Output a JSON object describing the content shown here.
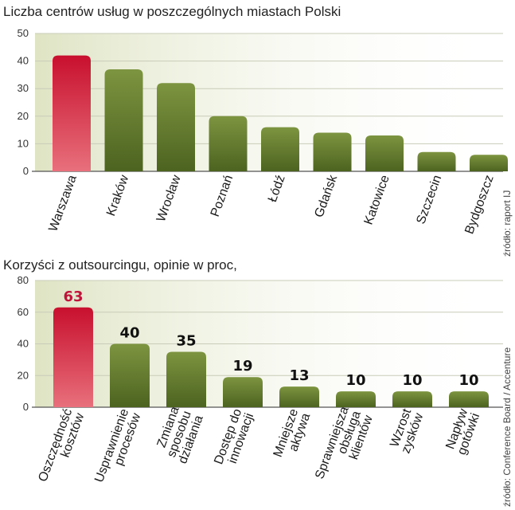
{
  "colors": {
    "highlight": "#d21c3c",
    "bar": "#5f7a2a",
    "band": "#e9ecd6",
    "highlight_label": "#c0143a"
  },
  "chart_data": [
    {
      "type": "bar",
      "title": "Liczba centrów usług w poszczególnych miastach Polski",
      "source": "źródło: raport IJ",
      "categories": [
        "Warszawa",
        "Kraków",
        "Wrocław",
        "Poznań",
        "Łódź",
        "Gdańsk",
        "Katowice",
        "Szczecin",
        "Bydgoszcz"
      ],
      "values": [
        42,
        37,
        32,
        20,
        16,
        14,
        13,
        7,
        6
      ],
      "highlight_index": 0,
      "ylim": [
        0,
        50
      ],
      "yticks": [
        0,
        10,
        20,
        30,
        40,
        50
      ],
      "show_value_labels": false
    },
    {
      "type": "bar",
      "title": "Korzyści z outsourcingu, opinie w proc,",
      "source": "źródło: Conference Board / Accenture",
      "categories": [
        [
          "Oszczędność",
          "kosztów"
        ],
        [
          "Usprawnienie",
          "procesów"
        ],
        [
          "Zmiana",
          "sposobu",
          "działania"
        ],
        [
          "Dostęp do",
          "innowacji"
        ],
        [
          "Mniejsze",
          "aktywa"
        ],
        [
          "Sprawniejsza",
          "obsługa",
          "klientów"
        ],
        [
          "Wzrost",
          "zysków"
        ],
        [
          "Napływ",
          "gotówki"
        ]
      ],
      "values": [
        63,
        40,
        35,
        19,
        13,
        10,
        10,
        10
      ],
      "value_labels": [
        "63",
        "40",
        "35",
        "19",
        "13",
        "10",
        "10",
        "10"
      ],
      "highlight_index": 0,
      "ylim": [
        0,
        80
      ],
      "yticks": [
        0,
        20,
        40,
        60,
        80
      ],
      "show_value_labels": true
    }
  ]
}
